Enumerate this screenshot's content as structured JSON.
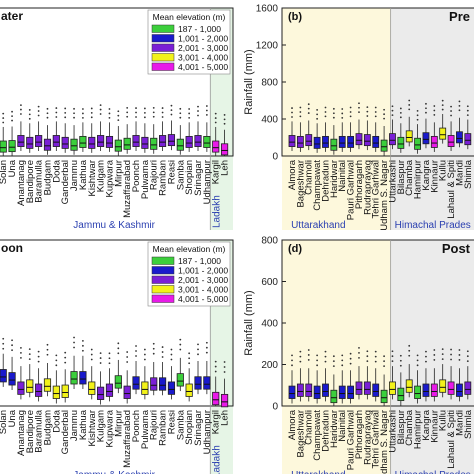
{
  "chart_data": [
    {
      "type": "box",
      "panel_label": "",
      "title_fragment": "ater",
      "ylabel": "",
      "regions": [
        {
          "name": "Jammu & Kashmir",
          "background": "#ffffff"
        },
        {
          "name": "Ladakh",
          "background": "#e6f5e6"
        }
      ],
      "legend": {
        "title": "Mean elevation (m)",
        "entries": [
          {
            "label": "187 - 1,000",
            "color": "#3ccf3c"
          },
          {
            "label": "1,001 - 2,000",
            "color": "#1a1acc"
          },
          {
            "label": "2,001 - 3,000",
            "color": "#7a1fd6"
          },
          {
            "label": "3,001 - 4,000",
            "color": "#f2f21a"
          },
          {
            "label": "4,001 - 5,000",
            "color": "#e81ae8"
          }
        ]
      },
      "categories": [
        "Solan",
        "Una",
        "Anantanag",
        "Bandipore",
        "Baramulla",
        "Budgam",
        "Doda",
        "Ganderbal",
        "Jammu",
        "Kathua",
        "Kishtwar",
        "Kulgam",
        "Kupwara",
        "Mirpur",
        "Muzaffarabad",
        "Poonch",
        "Pulwama",
        "Rajouri",
        "Ramban",
        "Reasi",
        "Samba",
        "Shopian",
        "Srinagar",
        "Udhampur",
        "Kargil",
        "Leh"
      ],
      "colors": [
        "green",
        "green",
        "purple",
        "purple",
        "purple",
        "purple",
        "purple",
        "purple",
        "green",
        "green",
        "purple",
        "purple",
        "purple",
        "green",
        "green",
        "purple",
        "purple",
        "green",
        "purple",
        "purple",
        "green",
        "purple",
        "purple",
        "green",
        "magenta",
        "magenta"
      ],
      "medians": [
        90,
        95,
        150,
        130,
        150,
        110,
        150,
        130,
        110,
        140,
        130,
        150,
        140,
        100,
        120,
        150,
        130,
        120,
        150,
        160,
        110,
        140,
        150,
        140,
        90,
        60
      ],
      "ylim": [
        0,
        1600
      ],
      "yticks": []
    },
    {
      "type": "box",
      "panel_label": "(b)",
      "title_fragment": "Pre",
      "ylabel": "Rainfall (mm)",
      "regions": [
        {
          "name": "Uttarakhand",
          "background": "#fdf8dc"
        },
        {
          "name": "Himachal Prades",
          "background": "#ebebeb"
        }
      ],
      "categories": [
        "Almora",
        "Bageshwar",
        "Chamoli",
        "Champawat",
        "Dehradun",
        "Haridwar",
        "Nainital",
        "Pauri Garhwal",
        "Pithoragarh",
        "Rudraprayag",
        "Tehri Garhwal",
        "Udham S. Nagar",
        "Uttarkashi",
        "Bilaspur",
        "Chamba",
        "Hamirpur",
        "Kangra",
        "Kinnaur",
        "Kullu",
        "Lahaul & Spiti",
        "Mandi",
        "Shimla"
      ],
      "colors": [
        "purple",
        "purple",
        "purple",
        "blue",
        "blue",
        "green",
        "blue",
        "blue",
        "purple",
        "purple",
        "blue",
        "green",
        "purple",
        "green",
        "yellow",
        "green",
        "blue",
        "magenta",
        "yellow",
        "magenta",
        "blue",
        "purple"
      ],
      "medians": [
        150,
        140,
        160,
        130,
        140,
        110,
        140,
        140,
        170,
        160,
        140,
        100,
        170,
        130,
        200,
        120,
        180,
        140,
        230,
        150,
        190,
        170
      ],
      "ylim": [
        0,
        1600
      ],
      "yticks": [
        0,
        400,
        800,
        1200,
        1600
      ]
    },
    {
      "type": "box",
      "panel_label": "",
      "title_fragment": "oon",
      "ylabel": "",
      "regions": [
        {
          "name": "Jammu & Kashmir",
          "background": "#ffffff"
        },
        {
          "name": "Ladakh",
          "background": "#e6f5e6"
        }
      ],
      "legend": {
        "title": "Mean elevation (m)",
        "entries": [
          {
            "label": "187 - 1,000",
            "color": "#3ccf3c"
          },
          {
            "label": "1,001 - 2,000",
            "color": "#1a1acc"
          },
          {
            "label": "2,001 - 3,000",
            "color": "#7a1fd6"
          },
          {
            "label": "3,001 - 4,000",
            "color": "#f2f21a"
          },
          {
            "label": "4,001 - 5,000",
            "color": "#e81ae8"
          }
        ]
      },
      "categories": [
        "Solan",
        "Una",
        "Anantanag",
        "Bandipore",
        "Baramulla",
        "Budgam",
        "Doda",
        "Ganderbal",
        "Jammu",
        "Kathua",
        "Kishtwar",
        "Kulgam",
        "Kupwara",
        "Mirpur",
        "Muzaffarabad",
        "Poonch",
        "Pulwama",
        "Rajouri",
        "Ramban",
        "Reasi",
        "Samba",
        "Shopian",
        "Srinagar",
        "Udhampur",
        "Kargil",
        "Leh"
      ],
      "colors": [
        "blue",
        "blue",
        "purple",
        "yellow",
        "purple",
        "yellow",
        "yellow",
        "yellow",
        "green",
        "blue",
        "yellow",
        "purple",
        "purple",
        "green",
        "purple",
        "blue",
        "yellow",
        "purple",
        "blue",
        "blue",
        "green",
        "yellow",
        "blue",
        "blue",
        "magenta",
        "magenta"
      ],
      "medians": [
        280,
        250,
        160,
        180,
        140,
        190,
        120,
        130,
        260,
        260,
        160,
        110,
        140,
        220,
        120,
        210,
        160,
        200,
        200,
        160,
        240,
        140,
        210,
        210,
        60,
        40
      ],
      "ylim": [
        0,
        1600
      ],
      "yticks": []
    },
    {
      "type": "box",
      "panel_label": "(d)",
      "title_fragment": "Post",
      "ylabel": "Rainfall (mm)",
      "regions": [
        {
          "name": "Uttarakhand",
          "background": "#fdf8dc"
        },
        {
          "name": "Himachal Prades",
          "background": "#ebebeb"
        }
      ],
      "categories": [
        "Almora",
        "Bageshwar",
        "Chamoli",
        "Champawat",
        "Dehradun",
        "Haridwar",
        "Nainital",
        "Pauri Garhwal",
        "Pithoragarh",
        "Rudraprayag",
        "Tehri Garhwal",
        "Udham S. Nagar",
        "Uttarkashi",
        "Bilaspur",
        "Chamba",
        "Hamirpur",
        "Kangra",
        "Kinnaur",
        "Kullu",
        "Lahaul & Spiti",
        "Mandi",
        "Shimla"
      ],
      "colors": [
        "blue",
        "purple",
        "purple",
        "blue",
        "blue",
        "green",
        "blue",
        "blue",
        "purple",
        "purple",
        "blue",
        "green",
        "yellow",
        "green",
        "yellow",
        "green",
        "blue",
        "magenta",
        "yellow",
        "magenta",
        "blue",
        "purple"
      ],
      "medians": [
        60,
        70,
        70,
        60,
        70,
        40,
        60,
        60,
        80,
        80,
        70,
        40,
        80,
        50,
        90,
        60,
        70,
        70,
        90,
        80,
        70,
        80
      ],
      "ylim": [
        0,
        800
      ],
      "yticks": [
        0,
        200,
        400,
        600,
        800
      ]
    }
  ]
}
